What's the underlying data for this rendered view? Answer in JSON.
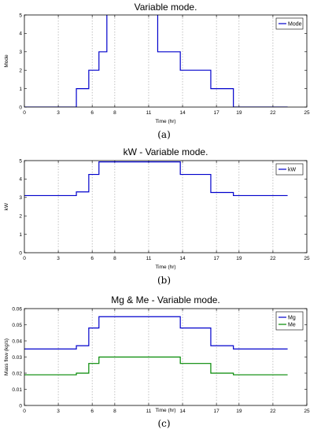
{
  "chart_data": [
    {
      "type": "line",
      "title": "Variable mode.",
      "xlabel": "Time (hr)",
      "ylabel": "Mode",
      "caption": "(a)",
      "xlim": [
        0,
        25
      ],
      "ylim": [
        0,
        5
      ],
      "xticks": [
        "0",
        "3",
        "6",
        "8",
        "11",
        "14",
        "17",
        "19",
        "22",
        "25"
      ],
      "xtick_values": [
        0,
        3,
        6,
        8,
        11,
        14,
        17,
        19,
        22,
        25
      ],
      "yticks": [
        "0",
        "1",
        "2",
        "3",
        "4",
        "5"
      ],
      "ytick_values": [
        0,
        1,
        2,
        3,
        4,
        5
      ],
      "grid": "vertical-dotted",
      "legend_position": "top-right",
      "series": [
        {
          "name": "Mode",
          "color": "#0000cc",
          "x": [
            0,
            4.6,
            4.6,
            5.7,
            5.7,
            6.6,
            6.6,
            7.3,
            7.3,
            11.8,
            11.8,
            13.8,
            13.8,
            16.5,
            16.5,
            18.5,
            18.5,
            23.3
          ],
          "y": [
            0,
            0,
            1,
            1,
            2,
            2,
            3,
            3,
            5.5,
            5.5,
            3,
            3,
            2,
            2,
            1,
            1,
            0,
            0
          ]
        }
      ]
    },
    {
      "type": "line",
      "title": "kW - Variable mode.",
      "xlabel": "Time (hr)",
      "ylabel": "kW",
      "caption": "(b)",
      "xlim": [
        0,
        25
      ],
      "ylim": [
        0,
        5
      ],
      "xticks": [
        "0",
        "3",
        "6",
        "8",
        "11",
        "14",
        "17",
        "19",
        "22",
        "25"
      ],
      "xtick_values": [
        0,
        3,
        6,
        8,
        11,
        14,
        17,
        19,
        22,
        25
      ],
      "yticks": [
        "0",
        "1",
        "2",
        "3",
        "4",
        "5"
      ],
      "ytick_values": [
        0,
        1,
        2,
        3,
        4,
        5
      ],
      "grid": "vertical-dotted",
      "legend_position": "top-right",
      "series": [
        {
          "name": "kW",
          "color": "#0000cc",
          "x": [
            0,
            4.6,
            4.6,
            5.7,
            5.7,
            6.6,
            6.6,
            13.8,
            13.8,
            16.5,
            16.5,
            18.5,
            18.5,
            23.3
          ],
          "y": [
            3.1,
            3.1,
            3.3,
            3.3,
            4.25,
            4.25,
            4.93,
            4.93,
            4.25,
            4.25,
            3.27,
            3.27,
            3.1,
            3.1
          ]
        }
      ]
    },
    {
      "type": "line",
      "title": "Mg & Me - Variable mode.",
      "xlabel": "Time (hr)",
      "ylabel": "Mass flow (kg/s)",
      "caption": "(c)",
      "xlim": [
        0,
        25
      ],
      "ylim": [
        0,
        0.06
      ],
      "xticks": [
        "0",
        "3",
        "6",
        "8",
        "11",
        "14",
        "17",
        "19",
        "22",
        "25"
      ],
      "xtick_values": [
        0,
        3,
        6,
        8,
        11,
        14,
        17,
        19,
        22,
        25
      ],
      "yticks": [
        "0",
        "0.01",
        "0.02",
        "0.03",
        "0.04",
        "0.05",
        "0.06"
      ],
      "ytick_values": [
        0,
        0.01,
        0.02,
        0.03,
        0.04,
        0.05,
        0.06
      ],
      "grid": "vertical-dotted",
      "legend_position": "top-right",
      "series": [
        {
          "name": "Mg",
          "color": "#0000cc",
          "x": [
            0,
            4.6,
            4.6,
            5.7,
            5.7,
            6.6,
            6.6,
            13.8,
            13.8,
            16.5,
            16.5,
            18.5,
            18.5,
            23.3
          ],
          "y": [
            0.035,
            0.035,
            0.037,
            0.037,
            0.048,
            0.048,
            0.055,
            0.055,
            0.048,
            0.048,
            0.037,
            0.037,
            0.035,
            0.035
          ]
        },
        {
          "name": "Me",
          "color": "#008800",
          "x": [
            0,
            4.6,
            4.6,
            5.7,
            5.7,
            6.6,
            6.6,
            13.8,
            13.8,
            16.5,
            16.5,
            18.5,
            18.5,
            23.3
          ],
          "y": [
            0.019,
            0.019,
            0.02,
            0.02,
            0.026,
            0.026,
            0.03,
            0.03,
            0.026,
            0.026,
            0.02,
            0.02,
            0.019,
            0.019
          ]
        }
      ]
    }
  ]
}
